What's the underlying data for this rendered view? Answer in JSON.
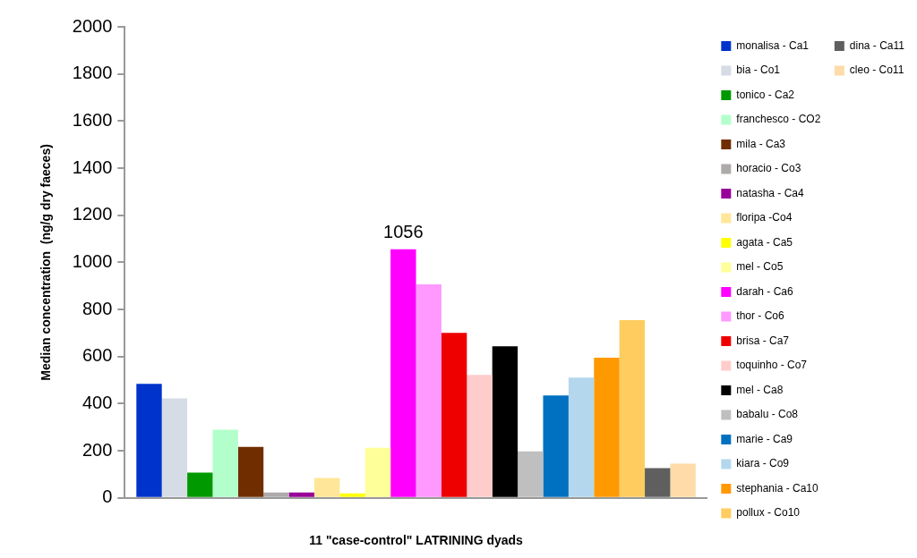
{
  "chart_data": {
    "type": "bar",
    "xlabel": "11 \"case-control\" LATRINING dyads",
    "ylabel": "Median concentration  (ng/g dry faeces)",
    "categories": [
      null
    ],
    "ylim": [
      0,
      2000
    ],
    "yticks": [
      0,
      200,
      400,
      600,
      800,
      1000,
      1200,
      1400,
      1600,
      1800,
      2000
    ],
    "grid": false,
    "legend": "right",
    "series": [
      {
        "name": "monalisa - Ca1",
        "color": "#0033cc",
        "values": [
          484
        ]
      },
      {
        "name": "bia - Co1",
        "color": "#d6dce5",
        "values": [
          423
        ]
      },
      {
        "name": "tonico - Ca2",
        "color": "#009900",
        "values": [
          107
        ]
      },
      {
        "name": "franchesco - CO2",
        "color": "#b3ffcc",
        "values": [
          290
        ]
      },
      {
        "name": "mila - Ca3",
        "color": "#702e00",
        "values": [
          217
        ]
      },
      {
        "name": "horacio - Co3",
        "color": "#aeaaaa",
        "values": [
          23
        ]
      },
      {
        "name": "natasha - Ca4",
        "color": "#990099",
        "values": [
          23
        ]
      },
      {
        "name": "floripa -Co4",
        "color": "#ffe699",
        "values": [
          85
        ]
      },
      {
        "name": "agata - Ca5",
        "color": "#ffff00",
        "values": [
          19
        ]
      },
      {
        "name": "mel - Co5",
        "color": "#ffff99",
        "values": [
          213
        ]
      },
      {
        "name": "darah - Ca6",
        "color": "#ff00ff",
        "values": [
          1056
        ],
        "value_labels": [
          "1056"
        ]
      },
      {
        "name": "thor - Co6",
        "color": "#ff99ff",
        "values": [
          907
        ]
      },
      {
        "name": "brisa - Ca7",
        "color": "#ee0000",
        "values": [
          701
        ]
      },
      {
        "name": "toquinho - Co7",
        "color": "#ffcccc",
        "values": [
          522
        ]
      },
      {
        "name": "mel - Ca8",
        "color": "#000000",
        "values": [
          644
        ]
      },
      {
        "name": "babalu - Co8",
        "color": "#bfbfbf",
        "values": [
          198
        ]
      },
      {
        "name": "marie - Ca9",
        "color": "#0070c0",
        "values": [
          435
        ]
      },
      {
        "name": "kiara - Co9",
        "color": "#b4d7ee",
        "values": [
          511
        ]
      },
      {
        "name": "stephania - Ca10",
        "color": "#ff9900",
        "values": [
          595
        ]
      },
      {
        "name": "pollux - Co10",
        "color": "#ffcc5f",
        "values": [
          755
        ]
      },
      {
        "name": "dina - Ca11",
        "color": "#5f5f5f",
        "values": [
          126
        ]
      },
      {
        "name": "cleo - Co11",
        "color": "#fedba8",
        "values": [
          145
        ]
      }
    ]
  }
}
